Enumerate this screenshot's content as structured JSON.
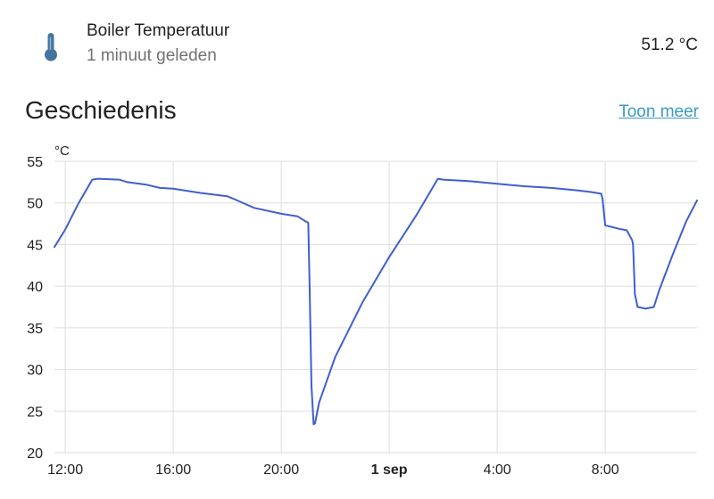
{
  "entity": {
    "icon": "thermometer-icon",
    "name": "Boiler Temperatuur",
    "last_changed": "1 minuut geleden",
    "state": "51.2 °C"
  },
  "history": {
    "title": "Geschiedenis",
    "more_link": "Toon meer"
  },
  "colors": {
    "line": "#3f5fcf",
    "icon": "#44739e",
    "link": "#3a9bc4"
  },
  "chart_data": {
    "type": "line",
    "ylabel": "°C",
    "ylim": [
      20,
      55
    ],
    "yticks": [
      20,
      25,
      30,
      35,
      40,
      45,
      50,
      55
    ],
    "xlim": [
      11.6,
      35.4
    ],
    "xticks": [
      {
        "x": 12,
        "label": "12:00",
        "bold": false
      },
      {
        "x": 16,
        "label": "16:00",
        "bold": false
      },
      {
        "x": 20,
        "label": "20:00",
        "bold": false
      },
      {
        "x": 24,
        "label": "1 sep",
        "bold": true
      },
      {
        "x": 28,
        "label": "4:00",
        "bold": false
      },
      {
        "x": 32,
        "label": "8:00",
        "bold": false
      }
    ],
    "grid": true,
    "series": [
      {
        "x": [
          11.6,
          12.0,
          12.5,
          13.0,
          13.2,
          14.0,
          14.3,
          15.0,
          15.5,
          16.0,
          17.0,
          18.0,
          18.3,
          19.0,
          20.0,
          20.6,
          20.9,
          21.0,
          21.05,
          21.12,
          21.2,
          21.25,
          21.4,
          22.0,
          23.0,
          24.0,
          25.0,
          25.8,
          26.0,
          27.0,
          28.0,
          29.0,
          30.0,
          31.0,
          31.5,
          31.85,
          31.9,
          32.0,
          32.5,
          32.8,
          33.0,
          33.03,
          33.1,
          33.2,
          33.5,
          33.8,
          34.0,
          34.5,
          35.0,
          35.4
        ],
        "y": [
          44.7,
          46.8,
          50.0,
          52.8,
          52.9,
          52.8,
          52.5,
          52.2,
          51.8,
          51.7,
          51.2,
          50.8,
          50.4,
          49.4,
          48.7,
          48.4,
          47.8,
          47.6,
          40.0,
          28.0,
          23.4,
          23.5,
          26.0,
          31.5,
          38.0,
          43.5,
          48.5,
          52.9,
          52.8,
          52.6,
          52.3,
          52.0,
          51.8,
          51.5,
          51.3,
          51.1,
          50.5,
          47.3,
          46.9,
          46.7,
          45.5,
          45.0,
          39.0,
          37.5,
          37.3,
          37.5,
          39.5,
          43.8,
          47.8,
          50.3
        ]
      }
    ]
  }
}
